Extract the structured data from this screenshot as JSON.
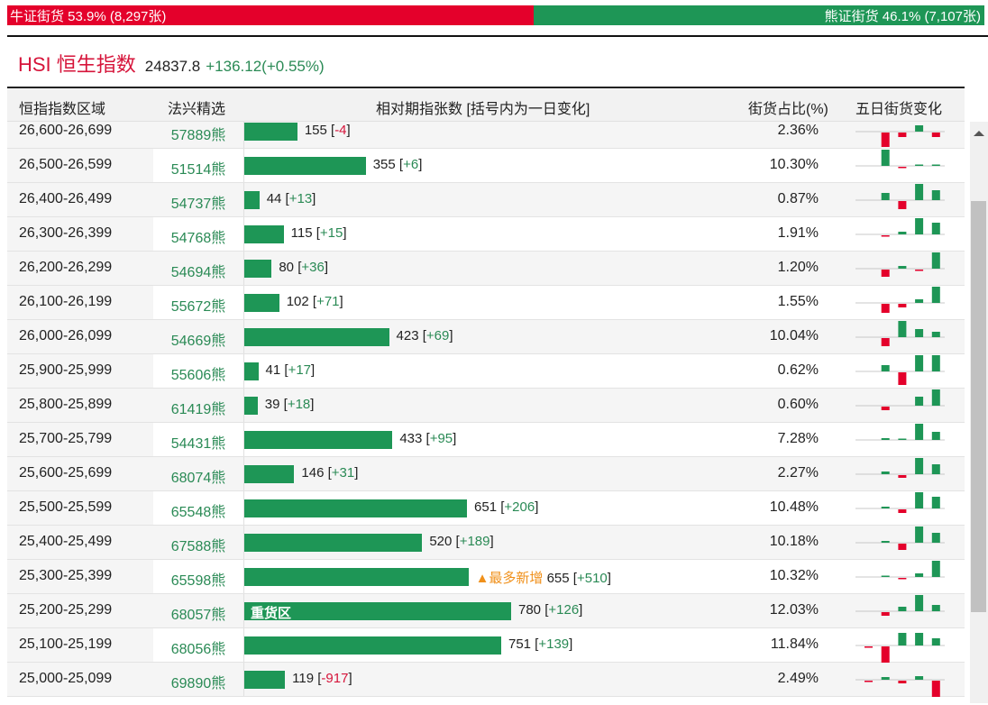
{
  "ratio": {
    "bull_label": "牛证街货 53.9% (8,297张)",
    "bull_pct": 53.9,
    "bear_label": "熊证街货 46.1% (7,107张)",
    "bear_pct": 46.1
  },
  "index": {
    "name": "HSI 恒生指数",
    "price": "24837.8",
    "change": "+136.12(+0.55%)"
  },
  "table": {
    "headers": [
      "恒指指数区域",
      "法兴精选",
      "相对期指张数 [括号内为一日变化]",
      "街货占比(%)",
      "五日街货变化"
    ],
    "max_contracts": 780,
    "rows": [
      {
        "range": "26,600-26,699",
        "code": "57889熊",
        "contracts": 155,
        "change": "-4",
        "pct": "2.36%",
        "five_day": [
          0,
          -16,
          -5,
          7,
          -5
        ]
      },
      {
        "range": "26,500-26,599",
        "code": "51514熊",
        "contracts": 355,
        "change": "+6",
        "pct": "10.30%",
        "five_day": [
          0,
          18,
          -1,
          1,
          1
        ]
      },
      {
        "range": "26,400-26,499",
        "code": "54737熊",
        "contracts": 44,
        "change": "+13",
        "pct": "0.87%",
        "five_day": [
          0,
          8,
          -9,
          18,
          11
        ]
      },
      {
        "range": "26,300-26,399",
        "code": "54768熊",
        "contracts": 115,
        "change": "+15",
        "pct": "1.91%",
        "five_day": [
          0,
          -1,
          3,
          18,
          13
        ]
      },
      {
        "range": "26,200-26,299",
        "code": "54694熊",
        "contracts": 80,
        "change": "+36",
        "pct": "1.20%",
        "five_day": [
          0,
          -8,
          3,
          -1,
          18
        ]
      },
      {
        "range": "26,100-26,199",
        "code": "55672熊",
        "contracts": 102,
        "change": "+71",
        "pct": "1.55%",
        "five_day": [
          0,
          -10,
          -4,
          4,
          18
        ]
      },
      {
        "range": "26,000-26,099",
        "code": "54669熊",
        "contracts": 423,
        "change": "+69",
        "pct": "10.04%",
        "five_day": [
          0,
          -9,
          18,
          9,
          6
        ]
      },
      {
        "range": "25,900-25,999",
        "code": "55606熊",
        "contracts": 41,
        "change": "+17",
        "pct": "0.62%",
        "five_day": [
          0,
          7,
          -14,
          18,
          18
        ]
      },
      {
        "range": "25,800-25,899",
        "code": "61419熊",
        "contracts": 39,
        "change": "+18",
        "pct": "0.60%",
        "five_day": [
          0,
          -4,
          0,
          10,
          18
        ]
      },
      {
        "range": "25,700-25,799",
        "code": "54431熊",
        "contracts": 433,
        "change": "+95",
        "pct": "7.28%",
        "five_day": [
          0,
          2,
          1,
          18,
          9
        ]
      },
      {
        "range": "25,600-25,699",
        "code": "68074熊",
        "contracts": 146,
        "change": "+31",
        "pct": "2.27%",
        "five_day": [
          0,
          3,
          -3,
          18,
          11
        ]
      },
      {
        "range": "25,500-25,599",
        "code": "65548熊",
        "contracts": 651,
        "change": "+206",
        "pct": "10.48%",
        "five_day": [
          0,
          2,
          -4,
          18,
          13
        ]
      },
      {
        "range": "25,400-25,499",
        "code": "67588熊",
        "contracts": 520,
        "change": "+189",
        "pct": "10.18%",
        "five_day": [
          0,
          2,
          -7,
          18,
          11
        ]
      },
      {
        "range": "25,300-25,399",
        "code": "65598熊",
        "contracts": 655,
        "change": "+510",
        "pct": "10.32%",
        "note": "▲最多新增",
        "five_day": [
          0,
          1,
          -1,
          4,
          18
        ]
      },
      {
        "range": "25,200-25,299",
        "code": "68057熊",
        "contracts": 780,
        "change": "+126",
        "pct": "12.03%",
        "tag": "重货区",
        "five_day": [
          0,
          -4,
          5,
          18,
          7
        ]
      },
      {
        "range": "25,100-25,199",
        "code": "68056熊",
        "contracts": 751,
        "change": "+139",
        "pct": "11.84%",
        "five_day": [
          -1,
          -18,
          14,
          14,
          8
        ]
      },
      {
        "range": "25,000-25,099",
        "code": "69890熊",
        "contracts": 119,
        "change": "-917",
        "pct": "2.49%",
        "five_day": [
          -1,
          3,
          -3,
          4,
          -18
        ]
      }
    ]
  },
  "colors": {
    "bull": "#e4002b",
    "bear": "#1e9656",
    "up": "#2a8a55",
    "down": "#d6143a",
    "note": "#f0901a"
  }
}
